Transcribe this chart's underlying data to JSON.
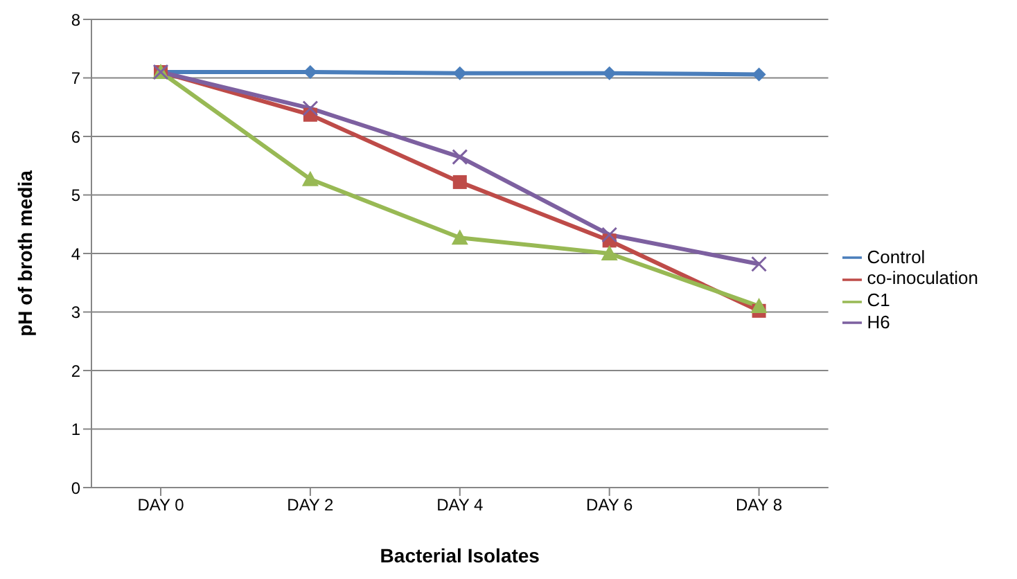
{
  "chart_data": {
    "type": "line",
    "xlabel": "Bacterial Isolates",
    "ylabel": "pH of broth media",
    "categories": [
      "DAY 0",
      "DAY 2",
      "DAY 4",
      "DAY 6",
      "DAY 8"
    ],
    "series": [
      {
        "name": "Control",
        "color": "#4a7ebb",
        "marker": "diamond",
        "values": [
          7.1,
          7.1,
          7.08,
          7.08,
          7.06
        ]
      },
      {
        "name": "co-inoculation",
        "color": "#be4b48",
        "marker": "square",
        "values": [
          7.1,
          6.37,
          5.22,
          4.22,
          3.02
        ]
      },
      {
        "name": "C1",
        "color": "#98b954",
        "marker": "triangle",
        "values": [
          7.1,
          5.27,
          4.27,
          4.0,
          3.1
        ]
      },
      {
        "name": "H6",
        "color": "#7d60a0",
        "marker": "cross",
        "values": [
          7.1,
          6.48,
          5.65,
          4.32,
          3.82
        ]
      }
    ],
    "ylim": [
      0,
      8
    ],
    "yticks": [
      0,
      1,
      2,
      3,
      4,
      5,
      6,
      7,
      8
    ],
    "grid": "y",
    "legend": "right",
    "line_style": "solid"
  }
}
